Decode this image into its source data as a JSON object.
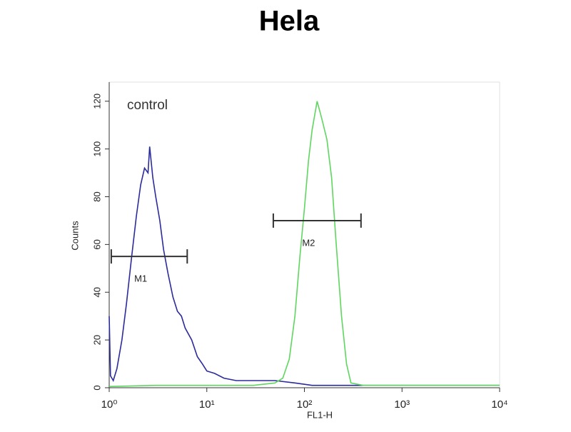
{
  "chart_data": {
    "type": "line",
    "title": "Hela",
    "xlabel": "FL1-H",
    "ylabel": "Counts",
    "xscale": "log",
    "xlim": [
      1,
      10000
    ],
    "ylim": [
      0,
      128
    ],
    "xticks": [
      {
        "value": 1,
        "label": "10⁰"
      },
      {
        "value": 10,
        "label": "10¹"
      },
      {
        "value": 100,
        "label": "10²"
      },
      {
        "value": 1000,
        "label": "10³"
      },
      {
        "value": 10000,
        "label": "10⁴"
      }
    ],
    "yticks": [
      0,
      20,
      40,
      60,
      80,
      100,
      120
    ],
    "annotation": "control",
    "series": [
      {
        "color": "#2b2b9c",
        "x": [
          1,
          1.03,
          1.1,
          1.2,
          1.35,
          1.5,
          1.7,
          1.9,
          2.1,
          2.3,
          2.5,
          2.6,
          2.8,
          3,
          3.3,
          3.6,
          4,
          4.5,
          5,
          5.5,
          6,
          7,
          8,
          9,
          10,
          12,
          15,
          20,
          30,
          50,
          80,
          120,
          200,
          400,
          1000,
          3000,
          10000
        ],
        "values": [
          30,
          5,
          3,
          8,
          20,
          35,
          55,
          72,
          85,
          92,
          90,
          101,
          88,
          80,
          70,
          58,
          48,
          38,
          32,
          30,
          25,
          20,
          13,
          10,
          7,
          6,
          4,
          3,
          3,
          3,
          2,
          1,
          1,
          1,
          1,
          1,
          1
        ]
      },
      {
        "color": "#5fd65f",
        "x": [
          1,
          3,
          10,
          30,
          50,
          60,
          70,
          80,
          90,
          100,
          110,
          120,
          135,
          150,
          170,
          190,
          210,
          240,
          270,
          300,
          400,
          1000,
          10000
        ],
        "values": [
          0.5,
          1,
          1,
          1,
          2,
          4,
          12,
          30,
          55,
          75,
          95,
          108,
          120,
          113,
          104,
          88,
          62,
          30,
          10,
          2,
          1,
          1,
          1
        ]
      }
    ],
    "markers": [
      {
        "label": "M1",
        "range": [
          1.05,
          6.3
        ],
        "y": 55
      },
      {
        "label": "M2",
        "range": [
          48,
          380
        ],
        "y": 70
      }
    ]
  }
}
